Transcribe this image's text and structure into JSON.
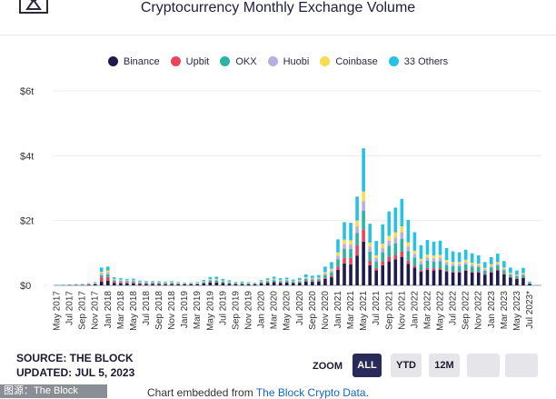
{
  "page": {
    "title": "Cryptocurrency Monthly Exchange Volume",
    "source": "SOURCE: THE BLOCK",
    "updated": "UPDATED: JUL 5, 2023",
    "zoom_label": "ZOOM",
    "zoom_buttons": [
      "ALL",
      "YTD",
      "12M"
    ],
    "embed_prefix": "Chart embedded from ",
    "embed_link": "The Block Crypto Data",
    "embed_suffix": ".",
    "watermark": "图源：The Block"
  },
  "colors": {
    "Binance": "#1f1b4d",
    "Upbit": "#e8455a",
    "OKX": "#2bb3a3",
    "Huobi": "#b9aee0",
    "Coinbase": "#f7dc4e",
    "33 Others": "#27c1e6"
  },
  "chart_data": {
    "type": "bar",
    "stacked": true,
    "title": "Cryptocurrency Monthly Exchange Volume",
    "ylabel": "",
    "ylim": [
      0,
      6
    ],
    "yticks": [
      0,
      2,
      4,
      6
    ],
    "ytick_labels": [
      "$0",
      "$2t",
      "$4t",
      "$6t"
    ],
    "xtick_labels": [
      "May 2017",
      "Jul 2017",
      "Sep 2017",
      "Nov 2017",
      "Jan 2018",
      "Mar 2018",
      "May 2018",
      "Jul 2018",
      "Sep 2018",
      "Nov 2018",
      "Jan 2019",
      "Mar 2019",
      "May 2019",
      "Jul 2019",
      "Sep 2019",
      "Nov 2019",
      "Jan 2020",
      "Mar 2020",
      "May 2020",
      "Jul 2020",
      "Sep 2020",
      "Nov 2020",
      "Jan 2021",
      "Mar 2021",
      "May 2021",
      "Jul 2021",
      "Sep 2021",
      "Nov 2021",
      "Jan 2022",
      "Mar 2022",
      "May 2022",
      "Jul 2022",
      "Sep 2022",
      "Nov 2022",
      "Jan 2023",
      "Mar 2023",
      "May 2023",
      "Jul 2023*"
    ],
    "legend": [
      "Binance",
      "Upbit",
      "OKX",
      "Huobi",
      "Coinbase",
      "33 Others"
    ],
    "categories": [
      "2017-05",
      "2017-06",
      "2017-07",
      "2017-08",
      "2017-09",
      "2017-10",
      "2017-11",
      "2017-12",
      "2018-01",
      "2018-02",
      "2018-03",
      "2018-04",
      "2018-05",
      "2018-06",
      "2018-07",
      "2018-08",
      "2018-09",
      "2018-10",
      "2018-11",
      "2018-12",
      "2019-01",
      "2019-02",
      "2019-03",
      "2019-04",
      "2019-05",
      "2019-06",
      "2019-07",
      "2019-08",
      "2019-09",
      "2019-10",
      "2019-11",
      "2019-12",
      "2020-01",
      "2020-02",
      "2020-03",
      "2020-04",
      "2020-05",
      "2020-06",
      "2020-07",
      "2020-08",
      "2020-09",
      "2020-10",
      "2020-11",
      "2020-12",
      "2021-01",
      "2021-02",
      "2021-03",
      "2021-04",
      "2021-05",
      "2021-06",
      "2021-07",
      "2021-08",
      "2021-09",
      "2021-10",
      "2021-11",
      "2021-12",
      "2022-01",
      "2022-02",
      "2022-03",
      "2022-04",
      "2022-05",
      "2022-06",
      "2022-07",
      "2022-08",
      "2022-09",
      "2022-10",
      "2022-11",
      "2022-12",
      "2023-01",
      "2023-02",
      "2023-03",
      "2023-04",
      "2023-05",
      "2023-06",
      "2023-07"
    ],
    "totals": [
      0.02,
      0.03,
      0.03,
      0.04,
      0.05,
      0.07,
      0.1,
      0.55,
      0.58,
      0.25,
      0.22,
      0.2,
      0.21,
      0.15,
      0.14,
      0.14,
      0.13,
      0.12,
      0.13,
      0.1,
      0.09,
      0.09,
      0.1,
      0.17,
      0.26,
      0.27,
      0.2,
      0.16,
      0.11,
      0.12,
      0.1,
      0.09,
      0.16,
      0.22,
      0.27,
      0.22,
      0.24,
      0.18,
      0.23,
      0.34,
      0.3,
      0.32,
      0.58,
      0.72,
      1.42,
      1.95,
      1.93,
      2.74,
      4.23,
      1.9,
      1.37,
      1.88,
      2.28,
      2.4,
      2.67,
      2.02,
      1.64,
      1.24,
      1.4,
      1.35,
      1.38,
      1.15,
      1.05,
      1.02,
      1.1,
      0.99,
      0.93,
      0.72,
      0.87,
      0.98,
      0.75,
      0.55,
      0.46,
      0.54,
      0.12
    ],
    "series": [
      {
        "name": "Binance",
        "values": [
          0,
          0,
          0.01,
          0.01,
          0.01,
          0.02,
          0.03,
          0.12,
          0.14,
          0.07,
          0.06,
          0.06,
          0.06,
          0.04,
          0.04,
          0.04,
          0.04,
          0.03,
          0.04,
          0.03,
          0.03,
          0.03,
          0.03,
          0.06,
          0.09,
          0.09,
          0.07,
          0.05,
          0.04,
          0.04,
          0.03,
          0.03,
          0.06,
          0.08,
          0.1,
          0.08,
          0.09,
          0.07,
          0.08,
          0.12,
          0.11,
          0.12,
          0.2,
          0.25,
          0.48,
          0.68,
          0.65,
          0.92,
          1.35,
          0.62,
          0.46,
          0.62,
          0.74,
          0.8,
          0.88,
          0.66,
          0.55,
          0.42,
          0.48,
          0.46,
          0.48,
          0.42,
          0.4,
          0.4,
          0.45,
          0.4,
          0.4,
          0.33,
          0.4,
          0.46,
          0.34,
          0.24,
          0.2,
          0.23,
          0.05
        ]
      },
      {
        "name": "Upbit",
        "values": [
          0,
          0,
          0,
          0,
          0,
          0.01,
          0.01,
          0.12,
          0.12,
          0.04,
          0.03,
          0.03,
          0.03,
          0.02,
          0.02,
          0.02,
          0.01,
          0.01,
          0.01,
          0.01,
          0.01,
          0.01,
          0.01,
          0.01,
          0.02,
          0.02,
          0.01,
          0.01,
          0.01,
          0.01,
          0.01,
          0.01,
          0.01,
          0.01,
          0.01,
          0.01,
          0.01,
          0.01,
          0.01,
          0.02,
          0.02,
          0.02,
          0.03,
          0.04,
          0.1,
          0.17,
          0.2,
          0.32,
          0.38,
          0.14,
          0.08,
          0.12,
          0.14,
          0.14,
          0.16,
          0.1,
          0.06,
          0.04,
          0.06,
          0.06,
          0.05,
          0.03,
          0.03,
          0.03,
          0.03,
          0.03,
          0.02,
          0.02,
          0.03,
          0.03,
          0.03,
          0.02,
          0.02,
          0.02,
          0
        ]
      },
      {
        "name": "OKX",
        "values": [
          0,
          0.01,
          0.01,
          0.01,
          0.01,
          0.01,
          0.02,
          0.07,
          0.08,
          0.04,
          0.04,
          0.04,
          0.04,
          0.03,
          0.03,
          0.03,
          0.03,
          0.03,
          0.03,
          0.02,
          0.02,
          0.02,
          0.02,
          0.03,
          0.04,
          0.04,
          0.03,
          0.03,
          0.02,
          0.02,
          0.02,
          0.02,
          0.03,
          0.04,
          0.05,
          0.04,
          0.04,
          0.03,
          0.04,
          0.06,
          0.05,
          0.05,
          0.09,
          0.11,
          0.22,
          0.28,
          0.27,
          0.38,
          0.57,
          0.28,
          0.2,
          0.28,
          0.34,
          0.36,
          0.4,
          0.3,
          0.25,
          0.19,
          0.22,
          0.21,
          0.22,
          0.18,
          0.16,
          0.16,
          0.17,
          0.15,
          0.14,
          0.1,
          0.12,
          0.13,
          0.1,
          0.07,
          0.06,
          0.07,
          0.02
        ]
      },
      {
        "name": "Huobi",
        "values": [
          0,
          0.01,
          0.01,
          0.01,
          0.01,
          0.01,
          0.01,
          0.07,
          0.07,
          0.03,
          0.03,
          0.03,
          0.03,
          0.02,
          0.02,
          0.02,
          0.02,
          0.02,
          0.02,
          0.01,
          0.01,
          0.01,
          0.01,
          0.02,
          0.03,
          0.03,
          0.02,
          0.02,
          0.01,
          0.01,
          0.01,
          0.01,
          0.02,
          0.02,
          0.03,
          0.02,
          0.03,
          0.02,
          0.02,
          0.03,
          0.03,
          0.03,
          0.05,
          0.06,
          0.12,
          0.15,
          0.14,
          0.2,
          0.3,
          0.15,
          0.1,
          0.14,
          0.16,
          0.18,
          0.2,
          0.14,
          0.11,
          0.09,
          0.1,
          0.1,
          0.1,
          0.08,
          0.07,
          0.07,
          0.07,
          0.06,
          0.06,
          0.05,
          0.05,
          0.05,
          0.04,
          0.03,
          0.03,
          0.03,
          0.01
        ]
      },
      {
        "name": "Coinbase",
        "values": [
          0,
          0,
          0,
          0,
          0.01,
          0.01,
          0.01,
          0.04,
          0.05,
          0.02,
          0.02,
          0.01,
          0.01,
          0.01,
          0.01,
          0.01,
          0.01,
          0.01,
          0.01,
          0.01,
          0.01,
          0.01,
          0.01,
          0.01,
          0.02,
          0.02,
          0.02,
          0.01,
          0.01,
          0.01,
          0.01,
          0.01,
          0.01,
          0.02,
          0.02,
          0.02,
          0.02,
          0.01,
          0.02,
          0.02,
          0.02,
          0.02,
          0.04,
          0.05,
          0.1,
          0.13,
          0.13,
          0.18,
          0.3,
          0.13,
          0.09,
          0.13,
          0.15,
          0.16,
          0.18,
          0.13,
          0.1,
          0.08,
          0.09,
          0.09,
          0.09,
          0.07,
          0.06,
          0.06,
          0.07,
          0.06,
          0.05,
          0.04,
          0.05,
          0.05,
          0.04,
          0.03,
          0.02,
          0.03,
          0.01
        ]
      },
      {
        "name": "33 Others",
        "values": [
          0.02,
          0.01,
          0,
          0.01,
          0.01,
          0.01,
          0.02,
          0.13,
          0.12,
          0.05,
          0.04,
          0.03,
          0.04,
          0.03,
          0.02,
          0.02,
          0.02,
          0.02,
          0.02,
          0.02,
          0.01,
          0.01,
          0.02,
          0.04,
          0.06,
          0.07,
          0.05,
          0.04,
          0.02,
          0.03,
          0.02,
          0.01,
          0.03,
          0.05,
          0.06,
          0.05,
          0.05,
          0.04,
          0.06,
          0.09,
          0.07,
          0.08,
          0.17,
          0.21,
          0.4,
          0.54,
          0.54,
          0.74,
          1.33,
          0.58,
          0.44,
          0.59,
          0.75,
          0.76,
          0.85,
          0.69,
          0.57,
          0.42,
          0.45,
          0.43,
          0.44,
          0.37,
          0.33,
          0.3,
          0.31,
          0.29,
          0.26,
          0.18,
          0.22,
          0.26,
          0.2,
          0.16,
          0.13,
          0.16,
          0.03
        ]
      }
    ]
  }
}
